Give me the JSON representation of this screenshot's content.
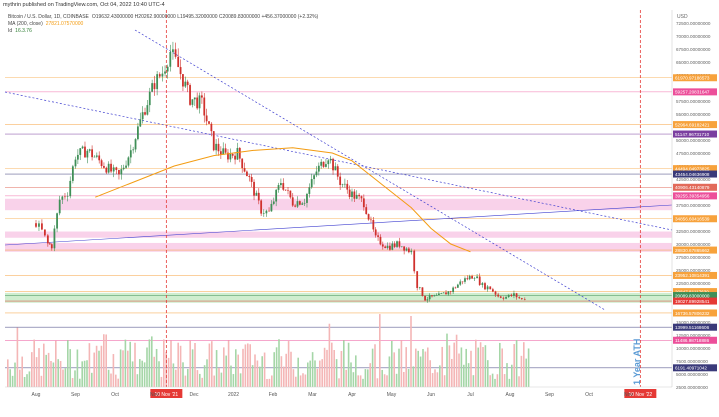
{
  "header": {
    "title": "mythrin published on TradingView.com, Oct 04, 2022 10:40 UTC-4"
  },
  "legend": {
    "symbol": "Bitcoin / U.S. Dollar, 1D, COINBASE",
    "ohlc": "O19632.43000000  H20262.90000000  L19495.32000000  C20089.83000000  +456.37000000 (+2.32%)",
    "ma_label": "MA (200, close)",
    "ma_value": "27821.07570000",
    "id_label": "Id",
    "id_value": "16.3.76"
  },
  "colors": {
    "candle_up": "#3f8f57",
    "candle_down": "#d0312d",
    "ma": "#f39c12",
    "vol_up": "#a5d6a7",
    "vol_down": "#f4b6b6",
    "trend_blue": "#4040d0",
    "zone_pink": "#f7c3e3",
    "zone_green": "#bfe8bf",
    "ath_text": "#5b9bd5",
    "event": "#e53935"
  },
  "chart_data": {
    "type": "candlestick",
    "x_axis": [
      "Aug",
      "Sep",
      "Oct",
      "Nov",
      "Dec",
      "2022",
      "Feb",
      "Mar",
      "Apr",
      "May",
      "Jun",
      "Jul",
      "Aug",
      "Sep",
      "Oct",
      "Nov"
    ],
    "y_range": [
      2500,
      75000
    ],
    "y_ticks": [
      "72500.00000000",
      "70000.00000000",
      "67500.00000000",
      "65000.00000000",
      "62500.00000000",
      "57500.00000000",
      "55000.00000000",
      "50000.00000000",
      "47500.00000000",
      "45000.00000000",
      "42500.00000000",
      "37500.00000000",
      "35000.00000000",
      "32500.00000000",
      "30000.00000000",
      "27500.00000000",
      "25000.00000000",
      "22500.00000000",
      "15000.00000000",
      "12500.00000000",
      "10000.00000000",
      "7500.00000000",
      "5000.00000000",
      "2500.00000000"
    ],
    "price_levels": [
      {
        "value": 61970.97,
        "label": "61970.97186573",
        "color": "#f7a23c"
      },
      {
        "value": 59257.21,
        "label": "59257.20831647",
        "color": "#ec4f9a"
      },
      {
        "value": 52964.69,
        "label": "52964.69182421",
        "color": "#f7a23c"
      },
      {
        "value": 51147.97,
        "label": "51147.96731710",
        "color": "#7b3fa0"
      },
      {
        "value": 44494.04,
        "label": "44494.04973825",
        "color": "#f7a23c"
      },
      {
        "value": 43454.05,
        "label": "43454.04636908",
        "color": "#3a3a7a"
      },
      {
        "value": 40906.43,
        "label": "40906.43140879",
        "color": "#e26a5a"
      },
      {
        "value": 39255.39,
        "label": "39255.39354956",
        "color": "#ec4f9a"
      },
      {
        "value": 34856.6,
        "label": "34856.60416539",
        "color": "#f7a23c"
      },
      {
        "value": 28830.68,
        "label": "28830.67865662",
        "color": "#f7a23c"
      },
      {
        "value": 23952.1,
        "label": "23952.10814391",
        "color": "#f7a23c"
      },
      {
        "value": 20847.81,
        "label": "20847.81117630",
        "color": "#f7a23c"
      },
      {
        "value": 20089.83,
        "label": "20089.83000000",
        "color": "#3f8f57"
      },
      {
        "value": 19027.9,
        "label": "19027.89928541",
        "color": "#e53935"
      },
      {
        "value": 16736.58,
        "label": "16736.57806232",
        "color": "#f7a23c"
      },
      {
        "value": 13999.52,
        "label": "13999.51168606",
        "color": "#3a3a7a"
      },
      {
        "value": 11486.99,
        "label": "11486.98718886",
        "color": "#ec4f9a"
      },
      {
        "value": 6191.41,
        "label": "6191.40971042",
        "color": "#3a3a7a"
      }
    ],
    "zones": [
      {
        "from": 36500,
        "to": 38700,
        "color": "#f7c3e3"
      },
      {
        "from": 31200,
        "to": 32400,
        "color": "#f7c3e3"
      },
      {
        "from": 28500,
        "to": 30200,
        "color": "#f7c3e3"
      },
      {
        "from": 18700,
        "to": 20600,
        "color": "#bfe8bf"
      }
    ],
    "events": [
      {
        "label": "10 Nov '21",
        "month_index": 3.3
      },
      {
        "label": "10 Nov '22",
        "month_index": 15.3
      }
    ],
    "annotation": "1 Year ATH",
    "price_path": [
      [
        0,
        34000
      ],
      [
        0.15,
        32500
      ],
      [
        0.3,
        30000
      ],
      [
        0.4,
        29700
      ],
      [
        0.6,
        38500
      ],
      [
        0.8,
        40000
      ],
      [
        1.0,
        47000
      ],
      [
        1.3,
        48000
      ],
      [
        1.6,
        46000
      ],
      [
        1.9,
        44000
      ],
      [
        2.1,
        43000
      ],
      [
        2.4,
        48000
      ],
      [
        2.7,
        55000
      ],
      [
        3.0,
        61000
      ],
      [
        3.2,
        63000
      ],
      [
        3.4,
        67000
      ],
      [
        3.6,
        64000
      ],
      [
        3.9,
        58000
      ],
      [
        4.2,
        57000
      ],
      [
        4.5,
        49000
      ],
      [
        4.8,
        47000
      ],
      [
        5.1,
        47500
      ],
      [
        5.4,
        42500
      ],
      [
        5.7,
        36500
      ],
      [
        5.9,
        36000
      ],
      [
        6.2,
        42000
      ],
      [
        6.5,
        38000
      ],
      [
        6.8,
        38500
      ],
      [
        7.1,
        44000
      ],
      [
        7.4,
        47000
      ],
      [
        7.7,
        42000
      ],
      [
        8.0,
        39500
      ],
      [
        8.3,
        38000
      ],
      [
        8.6,
        31000
      ],
      [
        8.9,
        29500
      ],
      [
        9.2,
        30000
      ],
      [
        9.5,
        28500
      ],
      [
        9.65,
        22000
      ],
      [
        9.85,
        19500
      ],
      [
        10.2,
        20000
      ],
      [
        10.5,
        21000
      ],
      [
        10.8,
        23000
      ],
      [
        11.1,
        24000
      ],
      [
        11.3,
        22000
      ],
      [
        11.5,
        21500
      ],
      [
        11.7,
        20000
      ],
      [
        11.9,
        19800
      ],
      [
        12.1,
        20200
      ],
      [
        12.3,
        19300
      ],
      [
        12.45,
        20089
      ]
    ],
    "ma_path": [
      [
        1.5,
        39000
      ],
      [
        2.5,
        42000
      ],
      [
        3.5,
        45000
      ],
      [
        4.5,
        47000
      ],
      [
        5.5,
        48000
      ],
      [
        6.5,
        48500
      ],
      [
        7.5,
        47500
      ],
      [
        8.0,
        46000
      ],
      [
        8.5,
        43000
      ],
      [
        9.0,
        40000
      ],
      [
        9.5,
        37000
      ],
      [
        10.0,
        33000
      ],
      [
        10.5,
        30000
      ],
      [
        11.0,
        28500
      ]
    ]
  }
}
